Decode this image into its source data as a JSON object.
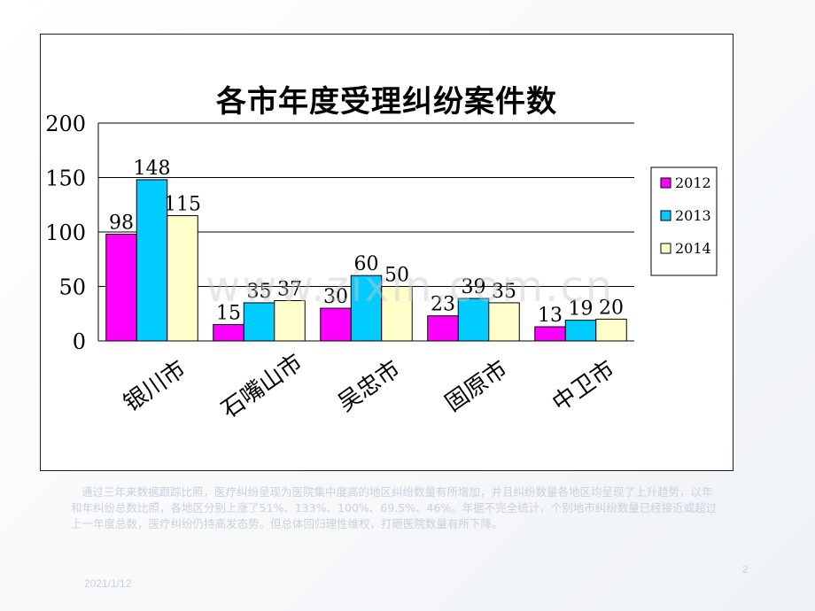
{
  "chart_data": {
    "type": "bar",
    "title": "各市年度受理纠纷案件数",
    "categories": [
      "银川市",
      "石嘴山市",
      "吴忠市",
      "固原市",
      "中卫市"
    ],
    "series": [
      {
        "name": "2012",
        "color": "#ff00ff",
        "values": [
          98,
          15,
          30,
          23,
          13
        ]
      },
      {
        "name": "2013",
        "color": "#00ccff",
        "values": [
          148,
          35,
          60,
          39,
          19
        ]
      },
      {
        "name": "2014",
        "color": "#ffffcc",
        "values": [
          115,
          37,
          50,
          35,
          20
        ]
      }
    ],
    "ylim": [
      0,
      200
    ],
    "yticks": [
      "0",
      "50",
      "100",
      "150",
      "200"
    ],
    "xlabel": "",
    "ylabel": "",
    "grid": true,
    "legend": "right"
  },
  "watermark": "www.zixin.com.cn",
  "body_text": "通过三年来数据跟踪比照，医疗纠纷呈现为医院集中度高的地区纠纷数量有所增加，并且纠纷数量各地区均呈现了上升趋势，以年和年纠纷总数比照，各地区分别上涨了51%、133%、100%、69.5%、46%。年据不完全统计，个别地市纠纷数量已经接近或超过上一年度总数，医疗纠纷仍持高发态势。但总体回归理性维权，打砸医院数量有所下降。",
  "footer_date": "2021/1/12",
  "page_number": "2"
}
